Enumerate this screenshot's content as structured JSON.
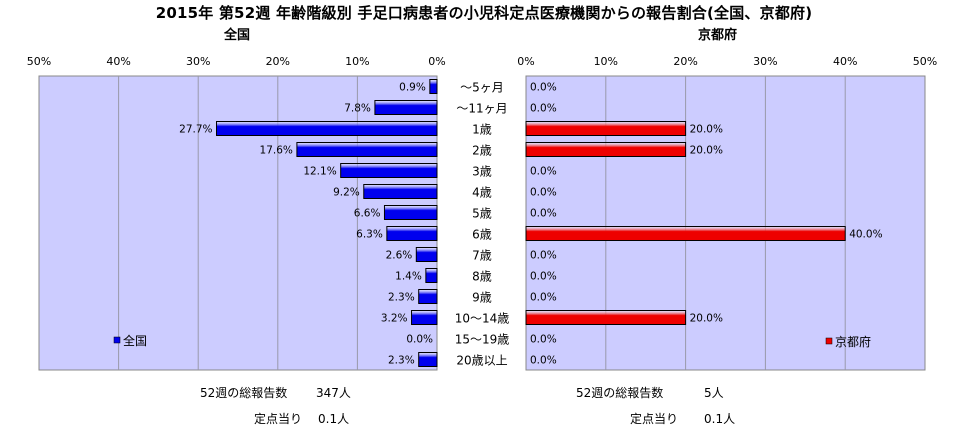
{
  "title": "2015年 第52週 年齢階級別 手足口病患者の小児科定点医療機関からの報告割合(全国、京都府)",
  "footer": {
    "national_total_label": "52週の総報告数",
    "national_total_value": "347人",
    "national_per_site_label": "定点当り",
    "national_per_site_value": "0.1人",
    "kyoto_total_label": "52週の総報告数",
    "kyoto_total_value": "5人",
    "kyoto_per_site_label": "定点当り",
    "kyoto_per_site_value": "0.1人"
  },
  "colors": {
    "plot_background": "#ccccff",
    "national_bar": "#0000ee",
    "kyoto_bar": "#ee0000",
    "gridline": "#9999aa"
  },
  "chart_data": [
    {
      "type": "bar",
      "orientation": "horizontal",
      "direction": "right-to-left",
      "subtitle": "全国",
      "legend_position": "bottom-left",
      "xlim": [
        0,
        50
      ],
      "x_ticks": [
        "50%",
        "40%",
        "30%",
        "20%",
        "10%",
        "0%"
      ],
      "grid": true,
      "categories": [
        "〜5ヶ月",
        "〜11ヶ月",
        "1歳",
        "2歳",
        "3歳",
        "4歳",
        "5歳",
        "6歳",
        "7歳",
        "8歳",
        "9歳",
        "10〜14歳",
        "15〜19歳",
        "20歳以上"
      ],
      "series": [
        {
          "name": "全国",
          "values": [
            0.9,
            7.8,
            27.7,
            17.6,
            12.1,
            9.2,
            6.6,
            6.3,
            2.6,
            1.4,
            2.3,
            3.2,
            0.0,
            2.3
          ],
          "labels": [
            "0.9%",
            "7.8%",
            "27.7%",
            "17.6%",
            "12.1%",
            "9.2%",
            "6.6%",
            "6.3%",
            "2.6%",
            "1.4%",
            "2.3%",
            "3.2%",
            "0.0%",
            "2.3%"
          ]
        }
      ]
    },
    {
      "type": "bar",
      "orientation": "horizontal",
      "direction": "left-to-right",
      "subtitle": "京都府",
      "legend_position": "bottom-right",
      "xlim": [
        0,
        50
      ],
      "x_ticks": [
        "0%",
        "10%",
        "20%",
        "30%",
        "40%",
        "50%"
      ],
      "grid": true,
      "categories": [
        "〜5ヶ月",
        "〜11ヶ月",
        "1歳",
        "2歳",
        "3歳",
        "4歳",
        "5歳",
        "6歳",
        "7歳",
        "8歳",
        "9歳",
        "10〜14歳",
        "15〜19歳",
        "20歳以上"
      ],
      "series": [
        {
          "name": "京都府",
          "values": [
            0.0,
            0.0,
            20.0,
            20.0,
            0.0,
            0.0,
            0.0,
            40.0,
            0.0,
            0.0,
            0.0,
            20.0,
            0.0,
            0.0
          ],
          "labels": [
            "0.0%",
            "0.0%",
            "20.0%",
            "20.0%",
            "0.0%",
            "0.0%",
            "0.0%",
            "40.0%",
            "0.0%",
            "0.0%",
            "0.0%",
            "20.0%",
            "0.0%",
            "0.0%"
          ]
        }
      ]
    }
  ]
}
